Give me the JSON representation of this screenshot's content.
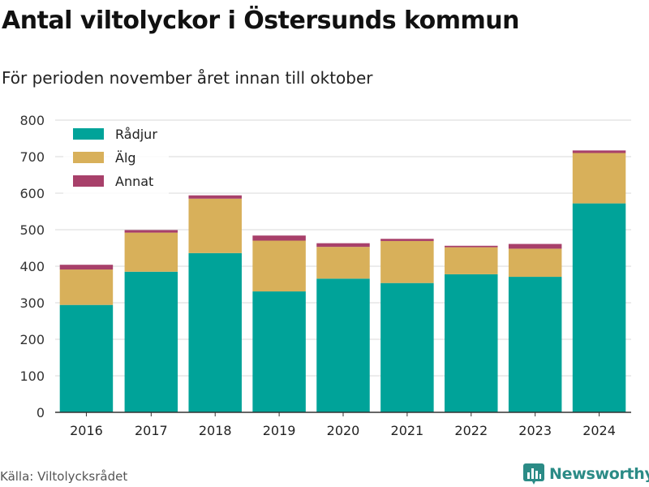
{
  "title": "Antal viltolyckor i Östersunds kommun",
  "subtitle": "För perioden november året innan till oktober",
  "source": "Källa: Viltolycksrådet",
  "brand": {
    "name": "Newsworthy",
    "icon": "bar-chart-icon",
    "color": "#2b8b86"
  },
  "chart_data": {
    "type": "bar",
    "stacked": true,
    "categories": [
      "2016",
      "2017",
      "2018",
      "2019",
      "2020",
      "2021",
      "2022",
      "2023",
      "2024"
    ],
    "series": [
      {
        "name": "Rådjur",
        "color": "#00a399",
        "values": [
          294,
          385,
          436,
          331,
          366,
          354,
          378,
          371,
          572
        ]
      },
      {
        "name": "Älg",
        "color": "#d8b05a",
        "values": [
          97,
          107,
          149,
          139,
          87,
          115,
          74,
          77,
          138
        ]
      },
      {
        "name": "Annat",
        "color": "#a8406a",
        "values": [
          13,
          7,
          9,
          14,
          10,
          6,
          4,
          13,
          7
        ]
      }
    ],
    "ylim": [
      0,
      800
    ],
    "yticks": [
      0,
      100,
      200,
      300,
      400,
      500,
      600,
      700,
      800
    ],
    "grid": true,
    "legend": "top-left"
  }
}
